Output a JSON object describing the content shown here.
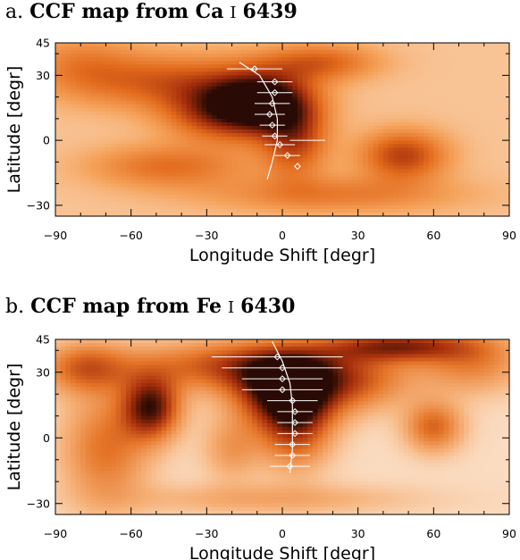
{
  "chart_data": [
    {
      "type": "heatmap",
      "panel_letter": "a.",
      "title": "CCF map from Ca",
      "title_ion": "I",
      "title_wavelength": "6439",
      "xlabel": "Longitude Shift [degr]",
      "ylabel": "Latitude [degr]",
      "xlim": [
        -90,
        90
      ],
      "ylim": [
        -35,
        45
      ],
      "xticks": [
        "−90",
        "−60",
        "−30",
        "0",
        "30",
        "60",
        "90"
      ],
      "yticks": [
        "45",
        "30",
        "0",
        "−30"
      ],
      "colormap": [
        "#fbe2cc",
        "#f5a25a",
        "#e26a1c",
        "#a32d0c",
        "#2a0a04"
      ],
      "background_level": 0.12,
      "blobs": [
        {
          "lon": -8,
          "lat": 17,
          "slon": 14,
          "slat": 10,
          "amp": 1.0
        },
        {
          "lon": -28,
          "lat": 13,
          "slon": 14,
          "slat": 9,
          "amp": 0.45
        },
        {
          "lon": 5,
          "lat": 0,
          "slon": 9,
          "slat": 12,
          "amp": 0.5
        },
        {
          "lon": -45,
          "lat": 27,
          "slon": 25,
          "slat": 9,
          "amp": 0.42
        },
        {
          "lon": 15,
          "lat": 36,
          "slon": 16,
          "slat": 6,
          "amp": 0.4
        },
        {
          "lon": 48,
          "lat": -7,
          "slon": 12,
          "slat": 8,
          "amp": 0.55
        },
        {
          "lon": -45,
          "lat": -12,
          "slon": 22,
          "slat": 7,
          "amp": 0.35
        },
        {
          "lon": 20,
          "lat": -25,
          "slon": 35,
          "slat": 6,
          "amp": 0.3
        },
        {
          "lon": -80,
          "lat": 35,
          "slon": 15,
          "slat": 10,
          "amp": 0.25
        }
      ],
      "points": [
        {
          "lat": 33,
          "lon": -11,
          "err": 11
        },
        {
          "lat": 27,
          "lon": -3,
          "err": 7
        },
        {
          "lat": 22,
          "lon": -3,
          "err": 7
        },
        {
          "lat": 17,
          "lon": -4,
          "err": 7
        },
        {
          "lat": 12,
          "lon": -5,
          "err": 6
        },
        {
          "lat": 7,
          "lon": -4,
          "err": 5
        },
        {
          "lat": 2,
          "lon": -3,
          "err": 5
        },
        {
          "lat": -2,
          "lon": -1,
          "err": 6
        },
        {
          "lat": -7,
          "lon": 2,
          "err": 5
        },
        {
          "lat": -12,
          "lon": 6,
          "err": 0
        }
      ],
      "fit_curve": [
        {
          "lat": 36,
          "lon": -17
        },
        {
          "lat": 30,
          "lon": -9
        },
        {
          "lat": 20,
          "lon": -4
        },
        {
          "lat": 10,
          "lon": -2
        },
        {
          "lat": 0,
          "lon": -2
        },
        {
          "lat": -10,
          "lon": -4
        },
        {
          "lat": -18,
          "lon": -6
        }
      ],
      "extra_line": {
        "lat": 0,
        "lon_from": 3,
        "lon_to": 17
      }
    },
    {
      "type": "heatmap",
      "panel_letter": "b.",
      "title": "CCF map from Fe",
      "title_ion": "I",
      "title_wavelength": "6430",
      "xlabel": "Longitude Shift [degr]",
      "ylabel": "Latitude [degr]",
      "xlim": [
        -90,
        90
      ],
      "ylim": [
        -35,
        45
      ],
      "xticks": [
        "−90",
        "−60",
        "−30",
        "0",
        "30",
        "60",
        "90"
      ],
      "yticks": [
        "45",
        "30",
        "0",
        "−30"
      ],
      "colormap": [
        "#fdf8f1",
        "#f6b27a",
        "#e57528",
        "#a9300c",
        "#2a0a04"
      ],
      "background_level": 0.1,
      "blobs": [
        {
          "lon": 2,
          "lat": 22,
          "slon": 14,
          "slat": 11,
          "amp": 0.95
        },
        {
          "lon": 5,
          "lat": 5,
          "slon": 10,
          "slat": 13,
          "amp": 0.55
        },
        {
          "lon": -52,
          "lat": 14,
          "slon": 8,
          "slat": 10,
          "amp": 0.8
        },
        {
          "lon": -15,
          "lat": 33,
          "slon": 30,
          "slat": 8,
          "amp": 0.55
        },
        {
          "lon": 45,
          "lat": 42,
          "slon": 20,
          "slat": 5,
          "amp": 0.65
        },
        {
          "lon": 60,
          "lat": 5,
          "slon": 8,
          "slat": 8,
          "amp": 0.45
        },
        {
          "lon": -78,
          "lat": 32,
          "slon": 12,
          "slat": 8,
          "amp": 0.45
        },
        {
          "lon": -70,
          "lat": -5,
          "slon": 12,
          "slat": 18,
          "amp": 0.4
        },
        {
          "lon": 30,
          "lat": 25,
          "slon": 15,
          "slat": 9,
          "amp": 0.35
        },
        {
          "lon": -20,
          "lat": -5,
          "slon": 8,
          "slat": 10,
          "amp": 0.25
        },
        {
          "lon": 75,
          "lat": 35,
          "slon": 15,
          "slat": 10,
          "amp": 0.35
        },
        {
          "lon": -5,
          "lat": -28,
          "slon": 40,
          "slat": 5,
          "amp": 0.2
        }
      ],
      "points": [
        {
          "lat": 37,
          "lon": -2,
          "err": 26
        },
        {
          "lat": 32,
          "lon": 0,
          "err": 24
        },
        {
          "lat": 27,
          "lon": 0,
          "err": 16
        },
        {
          "lat": 22,
          "lon": 0,
          "err": 16
        },
        {
          "lat": 17,
          "lon": 4,
          "err": 10
        },
        {
          "lat": 12,
          "lon": 5,
          "err": 7
        },
        {
          "lat": 7,
          "lon": 5,
          "err": 7
        },
        {
          "lat": 2,
          "lon": 5,
          "err": 7
        },
        {
          "lat": -3,
          "lon": 4,
          "err": 7
        },
        {
          "lat": -8,
          "lon": 4,
          "err": 7
        },
        {
          "lat": -13,
          "lon": 3,
          "err": 8
        }
      ],
      "fit_curve": [
        {
          "lat": 44,
          "lon": -4
        },
        {
          "lat": 35,
          "lon": 0
        },
        {
          "lat": 25,
          "lon": 3
        },
        {
          "lat": 15,
          "lon": 4
        },
        {
          "lat": 5,
          "lon": 4
        },
        {
          "lat": -5,
          "lon": 4
        },
        {
          "lat": -16,
          "lon": 3
        }
      ],
      "extra_line": null
    }
  ]
}
